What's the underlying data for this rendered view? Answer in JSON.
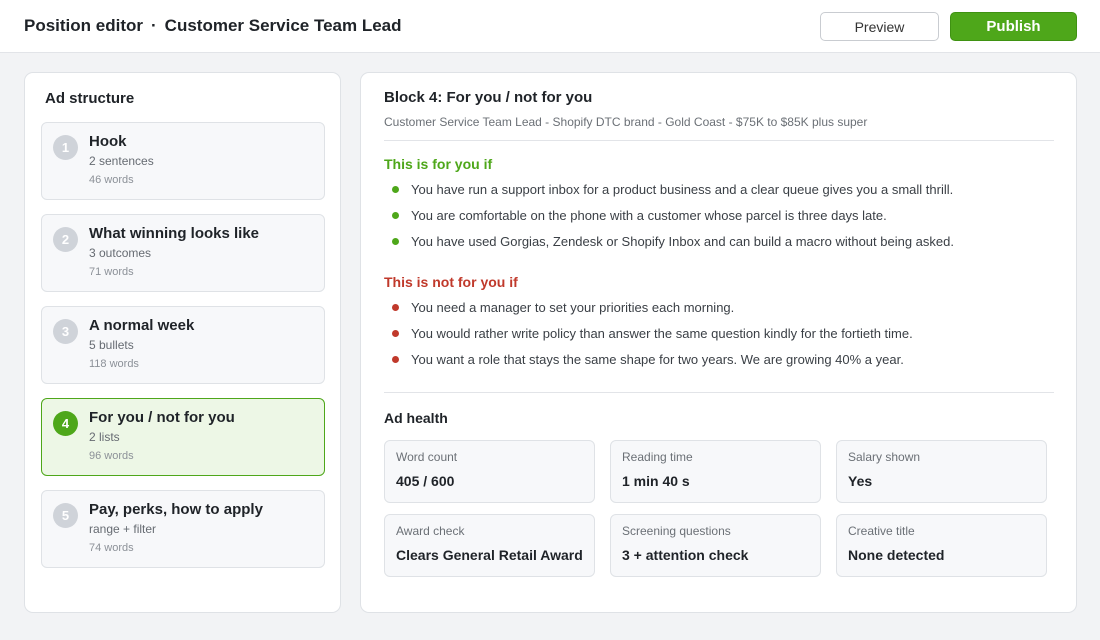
{
  "header": {
    "title": "Position editor",
    "separator": "·",
    "position": "Customer Service Team Lead",
    "preview_label": "Preview",
    "publish_label": "Publish"
  },
  "sidebar": {
    "heading": "Ad structure",
    "items": [
      {
        "num": "1",
        "title": "Hook",
        "sub": "2 sentences",
        "words": "46 words",
        "active": false
      },
      {
        "num": "2",
        "title": "What winning looks like",
        "sub": "3 outcomes",
        "words": "71 words",
        "active": false
      },
      {
        "num": "3",
        "title": "A normal week",
        "sub": "5 bullets",
        "words": "118 words",
        "active": false
      },
      {
        "num": "4",
        "title": "For you / not for you",
        "sub": "2 lists",
        "words": "96 words",
        "active": true
      },
      {
        "num": "5",
        "title": "Pay, perks, how to apply",
        "sub": "range + filter",
        "words": "74 words",
        "active": false
      }
    ]
  },
  "main": {
    "block_title": "Block 4: For you / not for you",
    "block_subtitle": "Customer Service Team Lead - Shopify DTC brand - Gold Coast - $75K to $85K plus super",
    "for_you": {
      "heading": "This is for you if",
      "items": [
        "You have run a support inbox for a product business and a clear queue gives you a small thrill.",
        "You are comfortable on the phone with a customer whose parcel is three days late.",
        "You have used Gorgias, Zendesk or Shopify Inbox and can build a macro without being asked."
      ]
    },
    "not_for_you": {
      "heading": "This is not for you if",
      "items": [
        "You need a manager to set your priorities each morning.",
        "You would rather write policy than answer the same question kindly for the fortieth time.",
        "You want a role that stays the same shape for two years. We are growing 40% a year."
      ]
    },
    "health": {
      "heading": "Ad health",
      "metrics": [
        {
          "label": "Word count",
          "value": "405 / 600"
        },
        {
          "label": "Reading time",
          "value": "1 min 40 s"
        },
        {
          "label": "Salary shown",
          "value": "Yes"
        },
        {
          "label": "Award check",
          "value": "Clears General Retail Award"
        },
        {
          "label": "Screening questions",
          "value": "3 + attention check"
        },
        {
          "label": "Creative title",
          "value": "None detected"
        }
      ]
    }
  },
  "colors": {
    "accent_green": "#4ea71a",
    "negative_red": "#c0392b",
    "active_card_bg": "#edf7e6"
  }
}
